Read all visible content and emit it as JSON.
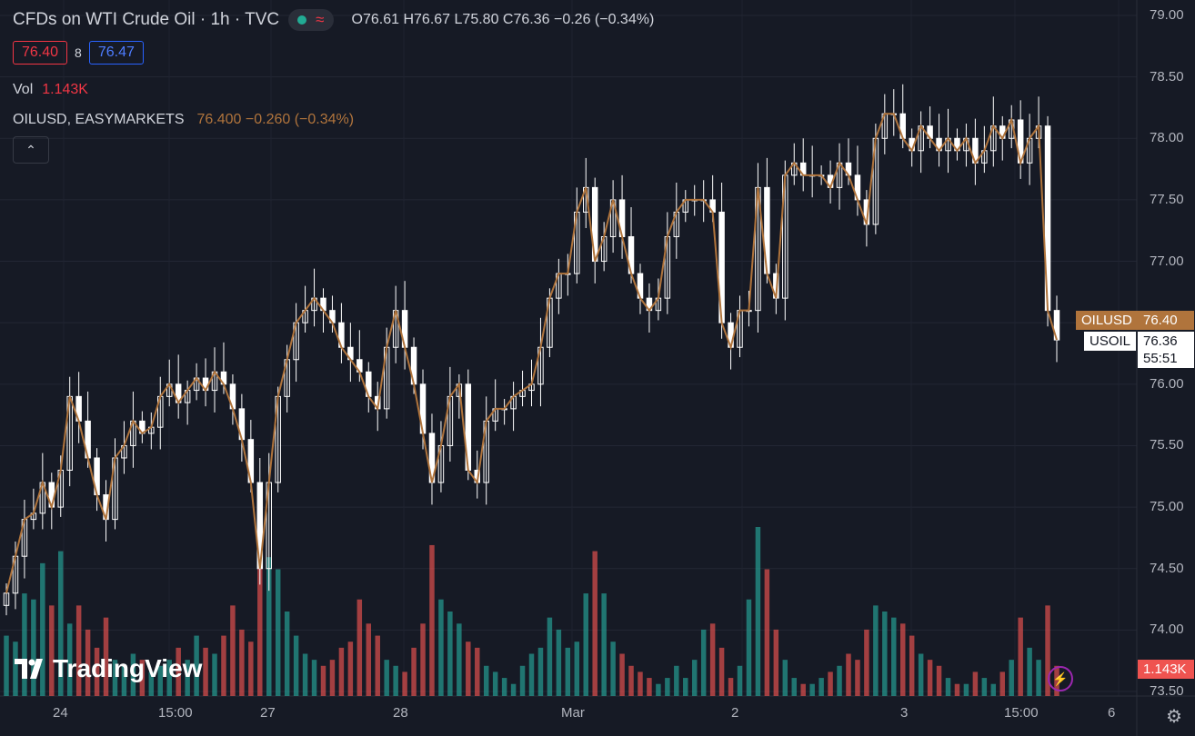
{
  "header": {
    "title": "CFDs on WTI Crude Oil · 1h · TVC",
    "ohlc": [
      {
        "k": "O",
        "v": "76.61"
      },
      {
        "k": "H",
        "v": "76.67"
      },
      {
        "k": "L",
        "v": "75.80"
      },
      {
        "k": "C",
        "v": "76.36"
      }
    ],
    "change": "−0.26 (−0.34%)",
    "wave_icon": "≈"
  },
  "quote": {
    "bid": "76.40",
    "spread": "8",
    "ask": "76.47"
  },
  "volume": {
    "label": "Vol",
    "value": "1.143K"
  },
  "indicator": {
    "label": "OILUSD, EASYMARKETS",
    "value": "76.400 −0.260 (−0.34%)"
  },
  "collapse_icon": "chevron-up",
  "colors": {
    "up": "#26a69a",
    "down": "#ef5350",
    "candle_body": "#ffffff",
    "line": "#b0743c",
    "bg": "#161a25"
  },
  "logo": "TradingView",
  "price_tags": {
    "oilusd_label": "OILUSD",
    "oilusd_value": "76.40",
    "usoil_label": "USOIL",
    "usoil_value": "76.36",
    "countdown": "55:51",
    "volume_value": "1.143K"
  },
  "chart_data": {
    "type": "candlestick",
    "y_ticks": [
      "79.00",
      "78.50",
      "78.00",
      "77.50",
      "77.00",
      "76.50",
      "76.00",
      "75.50",
      "75.00",
      "74.50",
      "74.00",
      "73.50"
    ],
    "ylim": [
      73.5,
      79.0
    ],
    "x_ticks": [
      "24",
      "15:00",
      "27",
      "28",
      "Mar",
      "2",
      "3",
      "15:00",
      "6"
    ],
    "series": [
      {
        "name": "USOIL",
        "close": [
          74.3,
          74.6,
          74.9,
          74.95,
          75.2,
          75.0,
          75.3,
          75.9,
          75.7,
          75.4,
          75.1,
          74.9,
          75.4,
          75.5,
          75.7,
          75.6,
          75.65,
          75.9,
          76.0,
          75.85,
          75.95,
          76.05,
          75.95,
          76.1,
          76.0,
          75.8,
          75.55,
          75.2,
          74.5,
          75.2,
          75.9,
          76.2,
          76.5,
          76.6,
          76.7,
          76.6,
          76.5,
          76.3,
          76.2,
          76.1,
          75.9,
          75.8,
          76.3,
          76.6,
          76.3,
          76.0,
          75.6,
          75.2,
          75.5,
          75.9,
          76.0,
          75.3,
          75.2,
          75.7,
          75.8,
          75.8,
          75.9,
          75.95,
          76.0,
          76.3,
          76.7,
          76.9,
          76.9,
          77.4,
          77.6,
          77.0,
          77.2,
          77.5,
          77.2,
          76.9,
          76.7,
          76.6,
          76.7,
          77.2,
          77.4,
          77.5,
          77.5,
          77.5,
          77.4,
          76.5,
          76.3,
          76.6,
          76.6,
          77.6,
          76.9,
          76.7,
          77.7,
          77.8,
          77.7,
          77.7,
          77.7,
          77.6,
          77.8,
          77.7,
          77.5,
          77.3,
          78.0,
          78.2,
          78.2,
          78.0,
          77.9,
          78.1,
          78.0,
          77.9,
          78.0,
          77.9,
          78.0,
          77.8,
          77.9,
          78.1,
          78.0,
          78.15,
          77.8,
          78.0,
          78.1,
          76.6,
          76.36
        ]
      },
      {
        "name": "OILUSD"
      }
    ],
    "volume": [
      1.0,
      0.9,
      1.7,
      1.6,
      2.2,
      1.5,
      2.4,
      1.2,
      1.5,
      1.1,
      0.8,
      1.3,
      0.6,
      0.5,
      0.7,
      0.6,
      0.4,
      0.5,
      0.6,
      0.8,
      0.6,
      1.0,
      0.8,
      0.7,
      1.0,
      1.5,
      1.1,
      0.9,
      2.5,
      2.3,
      2.1,
      1.4,
      1.0,
      0.7,
      0.6,
      0.5,
      0.6,
      0.8,
      0.9,
      1.6,
      1.2,
      1.0,
      0.6,
      0.5,
      0.4,
      0.8,
      1.2,
      2.5,
      1.6,
      1.4,
      1.2,
      0.9,
      0.8,
      0.5,
      0.4,
      0.3,
      0.2,
      0.5,
      0.7,
      0.8,
      1.3,
      1.1,
      0.8,
      0.9,
      1.7,
      2.4,
      1.7,
      0.9,
      0.7,
      0.5,
      0.4,
      0.3,
      0.2,
      0.3,
      0.5,
      0.3,
      0.6,
      1.1,
      1.2,
      0.8,
      0.3,
      0.5,
      1.6,
      2.8,
      2.1,
      1.1,
      0.6,
      0.3,
      0.2,
      0.2,
      0.3,
      0.4,
      0.5,
      0.7,
      0.6,
      1.1,
      1.5,
      1.4,
      1.3,
      1.2,
      1.0,
      0.7,
      0.6,
      0.5,
      0.3,
      0.2,
      0.2,
      0.4,
      0.3,
      0.2,
      0.4,
      0.6,
      1.3,
      0.8,
      0.6,
      1.5,
      0.5
    ]
  }
}
